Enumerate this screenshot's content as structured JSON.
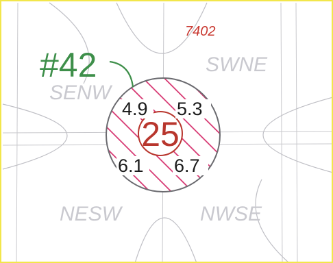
{
  "map": {
    "tag_label": "#42",
    "section_number": "7402",
    "quarters": {
      "nw": "SENW",
      "ne": "SWNE",
      "sw": "NESW",
      "se": "NWSE"
    },
    "center_pin": "25",
    "readings": {
      "top_left": "4.9",
      "top_right": "5.3",
      "bottom_left": "6.1",
      "bottom_right": "6.7"
    },
    "colors": {
      "border": "#f2e64a",
      "grid_line": "#c8c8cc",
      "tag_green": "#3e8f4a",
      "hatch_magenta": "#d6336f",
      "center_red": "#b8362d",
      "section_red": "#c8372f"
    }
  }
}
